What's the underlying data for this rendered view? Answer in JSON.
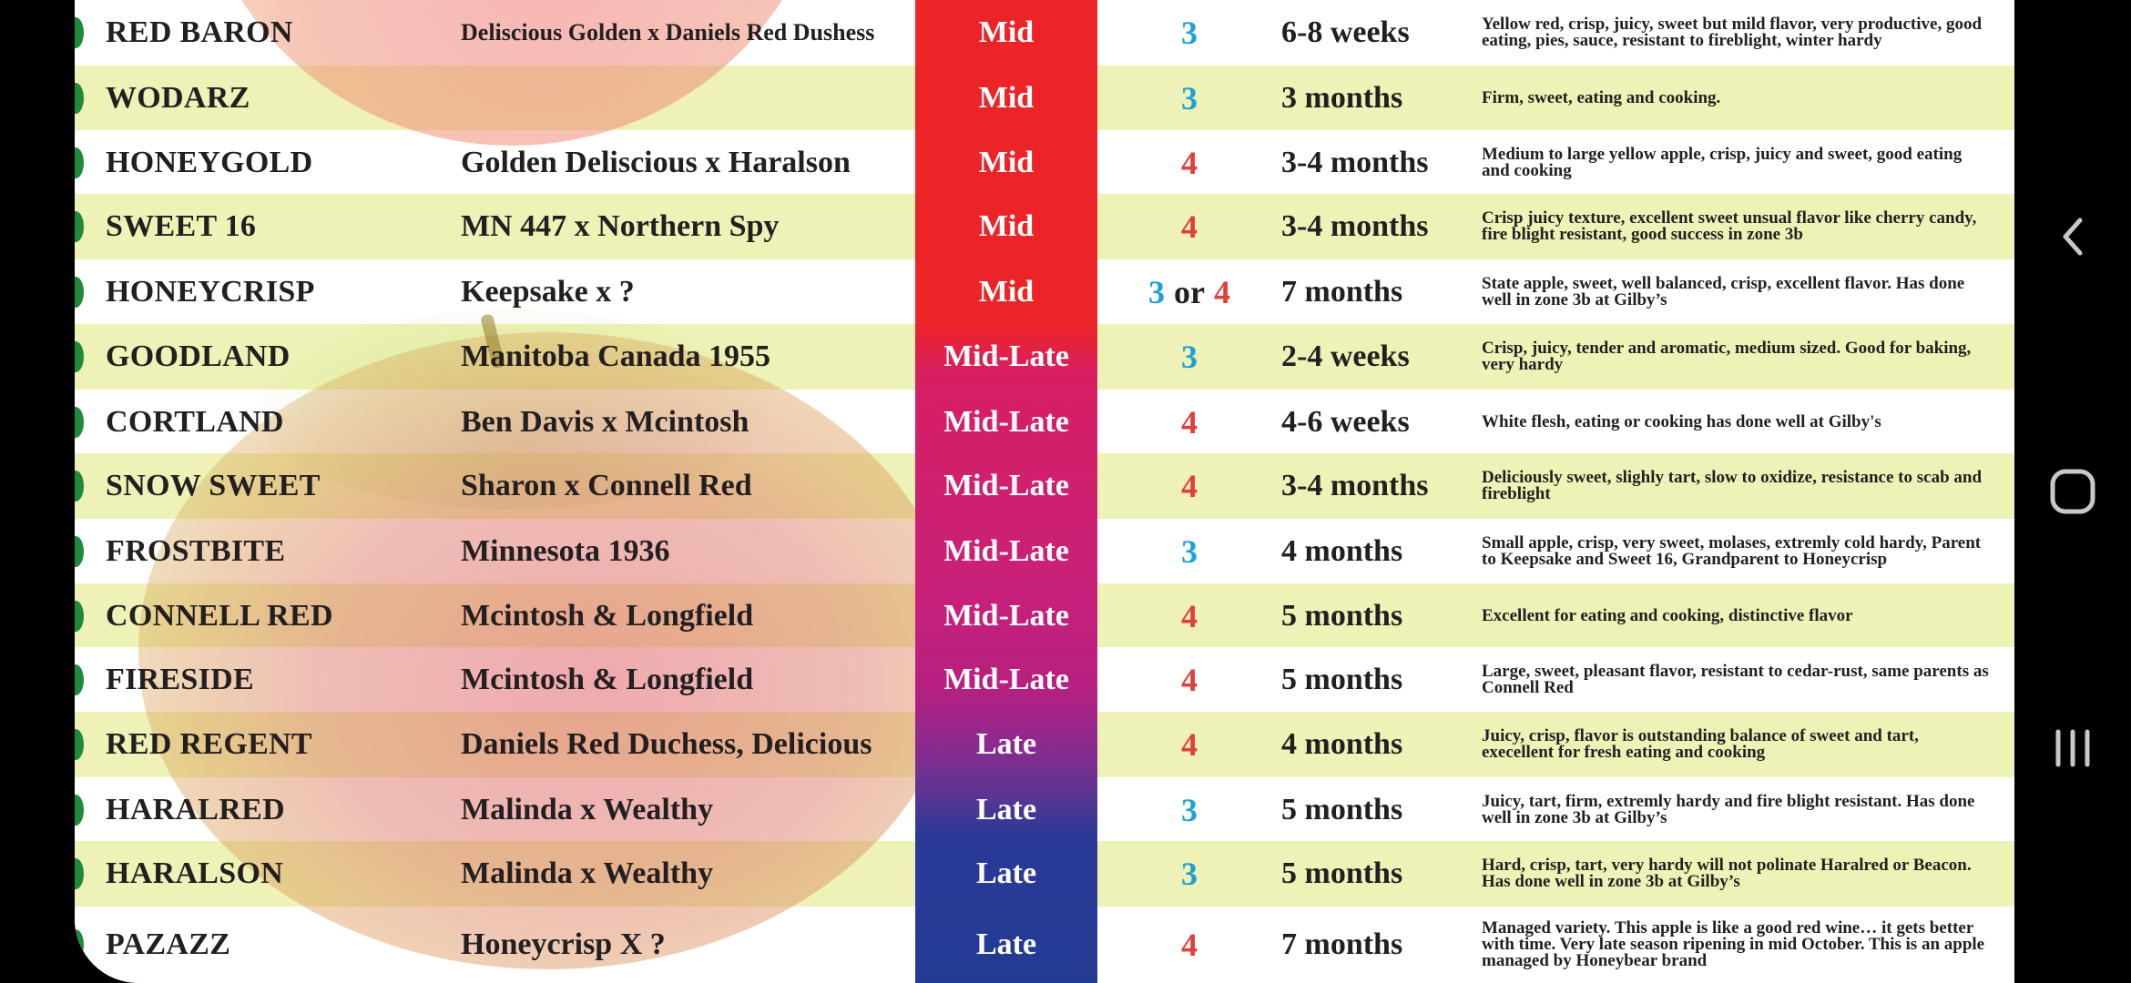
{
  "rows": [
    {
      "variety": "RED BARON",
      "parentage": "Deliscious Golden x Daniels Red Dushess",
      "parentage_small": true,
      "season": "Mid",
      "zone": [
        "3"
      ],
      "storage": "6-8 weeks",
      "notes": "Yellow red, crisp, juicy, sweet but mild flavor, very productive, good eating, pies, sauce, resistant to fireblight, winter hardy"
    },
    {
      "variety": "WODARZ",
      "parentage": "",
      "season": "Mid",
      "zone": [
        "3"
      ],
      "storage": "3 months",
      "notes": "Firm, sweet, eating and cooking."
    },
    {
      "variety": "HONEYGOLD",
      "parentage": "Golden Deliscious x Haralson",
      "season": "Mid",
      "zone": [
        "4"
      ],
      "storage": "3-4 months",
      "notes": "Medium to large yellow apple, crisp, juicy and sweet, good eating and cooking"
    },
    {
      "variety": "SWEET 16",
      "parentage": "MN 447 x Northern Spy",
      "season": "Mid",
      "zone": [
        "4"
      ],
      "storage": "3-4 months",
      "notes": "Crisp juicy texture, excellent sweet unsual flavor like cherry candy, fire blight resistant, good success in zone 3b"
    },
    {
      "variety": "HONEYCRISP",
      "parentage": "Keepsake x ?",
      "season": "Mid",
      "zone": [
        "3",
        "or",
        "4"
      ],
      "storage": "7 months",
      "notes": "State apple, sweet, well balanced, crisp, excellent flavor. Has done well in zone 3b at Gilby’s"
    },
    {
      "variety": "GOODLAND",
      "parentage": "Manitoba Canada 1955",
      "season": "Mid-Late",
      "zone": [
        "3"
      ],
      "storage": "2-4 weeks",
      "notes": "Crisp, juicy, tender and aromatic, medium sized. Good for baking, very hardy"
    },
    {
      "variety": "CORTLAND",
      "parentage": "Ben Davis x Mcintosh",
      "season": "Mid-Late",
      "zone": [
        "4"
      ],
      "storage": "4-6 weeks",
      "notes": "White flesh, eating or cooking has done well at Gilby's"
    },
    {
      "variety": "SNOW SWEET",
      "parentage": "Sharon x Connell Red",
      "season": "Mid-Late",
      "zone": [
        "4"
      ],
      "storage": "3-4 months",
      "notes": "Deliciously sweet, slighly tart, slow to oxidize, resistance to scab and fireblight"
    },
    {
      "variety": "FROSTBITE",
      "parentage": "Minnesota 1936",
      "season": "Mid-Late",
      "zone": [
        "3"
      ],
      "storage": "4 months",
      "notes": "Small apple, crisp, very sweet, molases, extremly cold hardy, Parent to Keepsake and Sweet 16, Grandparent to Honeycrisp"
    },
    {
      "variety": "CONNELL RED",
      "parentage": "Mcintosh & Longfield",
      "season": "Mid-Late",
      "zone": [
        "4"
      ],
      "storage": "5 months",
      "notes": "Excellent for eating and cooking, distinctive flavor"
    },
    {
      "variety": "FIRESIDE",
      "parentage": "Mcintosh & Longfield",
      "season": "Mid-Late",
      "zone": [
        "4"
      ],
      "storage": "5 months",
      "notes": "Large, sweet, pleasant flavor, resistant to cedar-rust, same parents as Connell Red"
    },
    {
      "variety": "RED REGENT",
      "parentage": "Daniels Red Duchess, Delicious",
      "season": "Late",
      "zone": [
        "4"
      ],
      "storage": "4 months",
      "notes": "Juicy, crisp, flavor is outstanding balance of sweet and tart, execellent for fresh eating and cooking"
    },
    {
      "variety": "HARALRED",
      "parentage": "Malinda x Wealthy",
      "season": "Late",
      "zone": [
        "3"
      ],
      "storage": "5 months",
      "notes": "Juicy, tart, firm, extremly hardy and fire blight resistant. Has done well in zone 3b at Gilby’s"
    },
    {
      "variety": "HARALSON",
      "parentage": "Malinda x Wealthy",
      "season": "Late",
      "zone": [
        "3"
      ],
      "storage": "5 months",
      "notes": "Hard, crisp, tart, very hardy will not polinate Haralred or Beacon. Has done well in zone 3b at Gilby’s"
    },
    {
      "variety": "PAZAZZ",
      "parentage": "Honeycrisp X ?",
      "season": "Late",
      "zone": [
        "4"
      ],
      "storage": "7 months",
      "notes": "Managed variety. This apple is like a good red wine… it gets better with time. Very late season ripening in mid October. This is an apple managed by Honeybear brand"
    }
  ],
  "colors": {
    "zone3": "#1ea1d8",
    "zone4": "#e0403a",
    "row_alt": "#eef2b6",
    "season_mid": "#ec2427",
    "season_midlate": "#c8207a",
    "season_late": "#233a93"
  },
  "nav": {
    "back_icon": "chevron-left-icon",
    "home_icon": "home-rounded-square-icon",
    "recents_icon": "recents-bars-icon"
  }
}
